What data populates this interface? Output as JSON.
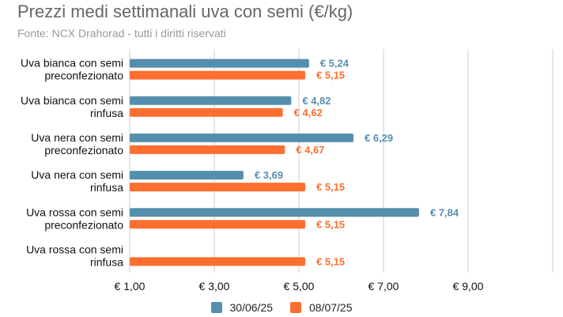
{
  "chart_data": {
    "type": "bar",
    "orientation": "horizontal",
    "title": "Prezzi medi settimanali uva con semi (€/kg)",
    "subtitle": "Fonte: NCX Drahorad - tutti i diritti riservati",
    "categories": [
      [
        "Uva bianca con semi",
        "preconfezionato"
      ],
      [
        "Uva bianca con semi",
        "rinfusa"
      ],
      [
        "Uva nera con semi",
        "preconfezionato"
      ],
      [
        "Uva nera con semi",
        "rinfusa"
      ],
      [
        "Uva rossa con semi",
        "preconfezionato"
      ],
      [
        "Uva rossa con semi",
        "rinfusa"
      ]
    ],
    "series": [
      {
        "name": "30/06/25",
        "color": "#558fae",
        "values": [
          5.24,
          4.82,
          6.29,
          3.69,
          7.84,
          null
        ],
        "labels": [
          "€ 5,24",
          "€ 4,82",
          "€ 6,29",
          "€ 3,69",
          "€ 7,84",
          null
        ]
      },
      {
        "name": "08/07/25",
        "color": "#fd6f30",
        "values": [
          5.15,
          4.62,
          4.67,
          5.15,
          5.15,
          5.15
        ],
        "labels": [
          "€ 5,15",
          "€ 4,62",
          "€ 4,67",
          "€ 5,15",
          "€ 5,15",
          "€ 5,15"
        ]
      }
    ],
    "xlim": [
      1,
      11
    ],
    "xticks": [
      1,
      3,
      5,
      7,
      9,
      11
    ],
    "xtick_labels": [
      "€ 1,00",
      "€ 3,00",
      "€ 5,00",
      "€ 7,00",
      "€ 9,00",
      ""
    ],
    "grid": true,
    "legend": "bottom"
  }
}
